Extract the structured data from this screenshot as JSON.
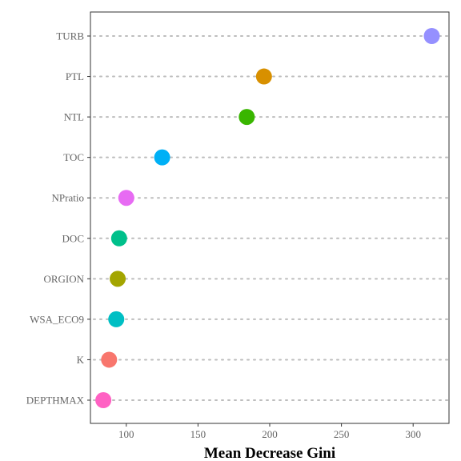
{
  "chart_data": {
    "type": "scatter",
    "title": "",
    "xlabel": "Mean Decrease Gini",
    "ylabel": "",
    "xlim": [
      75,
      325
    ],
    "xticks": [
      100,
      150,
      200,
      250,
      300
    ],
    "grid": "horizontal-dotted",
    "legend": "none",
    "points": [
      {
        "label": "DEPTHMAX",
        "value": 84,
        "color": "#ff61c3"
      },
      {
        "label": "K",
        "value": 88,
        "color": "#f8766d"
      },
      {
        "label": "WSA_ECO9",
        "value": 93,
        "color": "#00bfc4"
      },
      {
        "label": "ORGION",
        "value": 94,
        "color": "#a3a500"
      },
      {
        "label": "DOC",
        "value": 95,
        "color": "#00c08b"
      },
      {
        "label": "NPratio",
        "value": 100,
        "color": "#e76bf3"
      },
      {
        "label": "TOC",
        "value": 125,
        "color": "#00b0f6"
      },
      {
        "label": "NTL",
        "value": 184,
        "color": "#39b600"
      },
      {
        "label": "PTL",
        "value": 196,
        "color": "#d89000"
      },
      {
        "label": "TURB",
        "value": 313,
        "color": "#9590ff"
      }
    ]
  }
}
